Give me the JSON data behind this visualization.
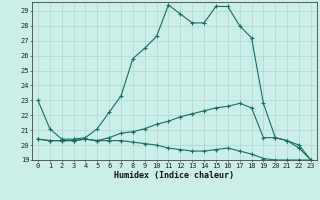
{
  "xlabel": "Humidex (Indice chaleur)",
  "background_color": "#cceee8",
  "grid_color": "#aad8d0",
  "line_color": "#1a6e60",
  "xlim": [
    -0.5,
    23.5
  ],
  "ylim": [
    19,
    29.6
  ],
  "yticks": [
    19,
    20,
    21,
    22,
    23,
    24,
    25,
    26,
    27,
    28,
    29
  ],
  "xticks": [
    0,
    1,
    2,
    3,
    4,
    5,
    6,
    7,
    8,
    9,
    10,
    11,
    12,
    13,
    14,
    15,
    16,
    17,
    18,
    19,
    20,
    21,
    22,
    23
  ],
  "series1_x": [
    0,
    1,
    2,
    3,
    4,
    5,
    6,
    7,
    8,
    9,
    10,
    11,
    12,
    13,
    14,
    15,
    16,
    17,
    18,
    19,
    20,
    21,
    22,
    23
  ],
  "series1_y": [
    23.0,
    21.1,
    20.4,
    20.4,
    20.5,
    21.1,
    22.2,
    23.3,
    25.8,
    26.5,
    27.3,
    29.4,
    28.8,
    28.2,
    28.2,
    29.3,
    29.3,
    28.0,
    27.2,
    22.8,
    20.5,
    20.3,
    19.8,
    19.0
  ],
  "series2_x": [
    0,
    1,
    2,
    3,
    4,
    5,
    6,
    7,
    8,
    9,
    10,
    11,
    12,
    13,
    14,
    15,
    16,
    17,
    18,
    19,
    20,
    21,
    22,
    23
  ],
  "series2_y": [
    20.4,
    20.3,
    20.3,
    20.3,
    20.4,
    20.3,
    20.5,
    20.8,
    20.9,
    21.1,
    21.4,
    21.6,
    21.9,
    22.1,
    22.3,
    22.5,
    22.6,
    22.8,
    22.5,
    20.5,
    20.5,
    20.3,
    20.0,
    19.0
  ],
  "series3_x": [
    0,
    1,
    2,
    3,
    4,
    5,
    6,
    7,
    8,
    9,
    10,
    11,
    12,
    13,
    14,
    15,
    16,
    17,
    18,
    19,
    20,
    21,
    22,
    23
  ],
  "series3_y": [
    20.4,
    20.3,
    20.3,
    20.3,
    20.4,
    20.3,
    20.3,
    20.3,
    20.2,
    20.1,
    20.0,
    19.8,
    19.7,
    19.6,
    19.6,
    19.7,
    19.8,
    19.6,
    19.4,
    19.1,
    19.0,
    19.0,
    19.0,
    19.0
  ]
}
